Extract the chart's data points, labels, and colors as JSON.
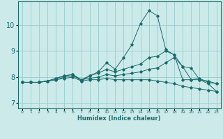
{
  "xlabel": "Humidex (Indice chaleur)",
  "ylabel": "",
  "xlim": [
    -0.5,
    23.5
  ],
  "ylim": [
    6.8,
    10.9
  ],
  "xticks": [
    0,
    1,
    2,
    3,
    4,
    5,
    6,
    7,
    8,
    9,
    10,
    11,
    12,
    13,
    14,
    15,
    16,
    17,
    18,
    19,
    20,
    21,
    22,
    23
  ],
  "yticks": [
    7,
    8,
    9,
    10
  ],
  "background_color": "#cceaea",
  "line_color": "#1a6b6b",
  "grid_color": "#99cccc",
  "series": [
    {
      "x": [
        0,
        1,
        2,
        3,
        4,
        5,
        6,
        7,
        8,
        9,
        10,
        11,
        12,
        13,
        14,
        15,
        16,
        17,
        18,
        19,
        20,
        21,
        22,
        23
      ],
      "y": [
        7.8,
        7.8,
        7.8,
        7.85,
        7.95,
        8.05,
        8.1,
        7.85,
        8.05,
        8.2,
        8.55,
        8.3,
        8.75,
        9.25,
        10.05,
        10.55,
        10.35,
        9.05,
        8.85,
        7.9,
        7.9,
        7.9,
        7.85,
        7.75
      ]
    },
    {
      "x": [
        0,
        1,
        2,
        3,
        4,
        5,
        6,
        7,
        8,
        9,
        10,
        11,
        12,
        13,
        14,
        15,
        16,
        17,
        18,
        19,
        20,
        21,
        22,
        23
      ],
      "y": [
        7.8,
        7.8,
        7.8,
        7.85,
        7.95,
        8.05,
        8.1,
        7.9,
        8.05,
        8.15,
        8.3,
        8.2,
        8.3,
        8.4,
        8.5,
        8.75,
        8.8,
        9.0,
        8.85,
        8.4,
        7.9,
        7.95,
        7.8,
        7.75
      ]
    },
    {
      "x": [
        0,
        1,
        2,
        3,
        4,
        5,
        6,
        7,
        8,
        9,
        10,
        11,
        12,
        13,
        14,
        15,
        16,
        17,
        18,
        19,
        20,
        21,
        22,
        23
      ],
      "y": [
        7.8,
        7.8,
        7.8,
        7.85,
        7.9,
        8.0,
        8.05,
        7.9,
        7.95,
        8.0,
        8.1,
        8.05,
        8.1,
        8.15,
        8.2,
        8.3,
        8.35,
        8.55,
        8.75,
        8.4,
        8.35,
        7.9,
        7.75,
        7.45
      ]
    },
    {
      "x": [
        0,
        1,
        2,
        3,
        4,
        5,
        6,
        7,
        8,
        9,
        10,
        11,
        12,
        13,
        14,
        15,
        16,
        17,
        18,
        19,
        20,
        21,
        22,
        23
      ],
      "y": [
        7.8,
        7.8,
        7.8,
        7.85,
        7.9,
        7.95,
        8.0,
        7.85,
        7.9,
        7.9,
        7.95,
        7.9,
        7.9,
        7.9,
        7.9,
        7.9,
        7.85,
        7.8,
        7.75,
        7.65,
        7.6,
        7.55,
        7.5,
        7.45
      ]
    }
  ]
}
